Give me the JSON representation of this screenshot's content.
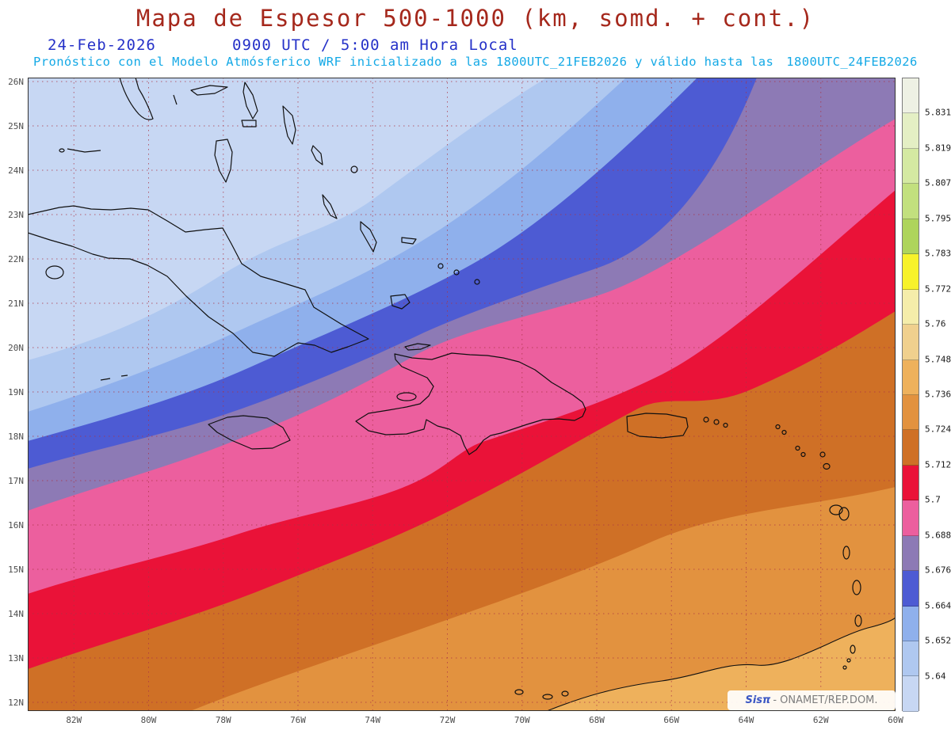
{
  "header": {
    "title": "Mapa de Espesor 500-1000 (km, somd. + cont.)",
    "date": "24-Feb-2026",
    "time": "0900 UTC / 5:00 am Hora Local",
    "forecast_part1": "Pronóstico con el Modelo Atmósferico WRF inicializado a las 1800UTC_21FEB2026 y válido hasta las",
    "forecast_part2": "1800UTC_24FEB2026"
  },
  "map": {
    "lat_labels": [
      "26N",
      "25N",
      "24N",
      "23N",
      "22N",
      "21N",
      "20N",
      "19N",
      "18N",
      "17N",
      "16N",
      "15N",
      "14N",
      "13N",
      "12N"
    ],
    "lon_labels": [
      "82W",
      "80W",
      "78W",
      "76W",
      "74W",
      "72W",
      "70W",
      "68W",
      "66W",
      "64W",
      "62W",
      "60W"
    ],
    "grid_color": "#aa3344",
    "watermark": {
      "brand": "Sisπ",
      "text": "- ONAMET/REP.DOM."
    }
  },
  "colorbar": {
    "labels_top_to_bottom": [
      "5.831",
      "5.819",
      "5.807",
      "5.795",
      "5.783",
      "5.772",
      "5.76",
      "5.748",
      "5.736",
      "5.724",
      "5.712",
      "5.7",
      "5.688",
      "5.676",
      "5.664",
      "5.652",
      "5.64"
    ],
    "colors_top_to_bottom": [
      "#eef1e4",
      "#e4efc4",
      "#d4e9a2",
      "#c2e07e",
      "#aed45c",
      "#f7f22b",
      "#f5edaa",
      "#f0d08e",
      "#eeb15c",
      "#e2923f",
      "#cf7026",
      "#ea1238",
      "#ec5f9e",
      "#8d7ab5",
      "#4d5bd3",
      "#8fb0ec",
      "#afc8f0",
      "#c7d7f3"
    ]
  },
  "chart_data": {
    "type": "filled-contour-map",
    "title": "Espesor 500-1000 (km), sombreado + contornos",
    "region": {
      "lat_range": [
        12,
        26
      ],
      "lon_range": [
        -83.2,
        -60
      ]
    },
    "contour_levels_km": [
      5.64,
      5.652,
      5.664,
      5.676,
      5.688,
      5.7,
      5.712,
      5.724,
      5.736,
      5.748,
      5.76,
      5.772,
      5.783,
      5.795,
      5.807,
      5.819,
      5.831
    ],
    "map_bands_nw_to_se": [
      {
        "range": "< 5.64",
        "color": "#c7d7f3"
      },
      {
        "range": "5.64 - 5.652",
        "color": "#afc8f0"
      },
      {
        "range": "5.652 - 5.664",
        "color": "#8fb0ec"
      },
      {
        "range": "5.664 - 5.676",
        "color": "#4d5bd3"
      },
      {
        "range": "5.676 - 5.688",
        "color": "#8d7ab5"
      },
      {
        "range": "5.688 - 5.7",
        "color": "#ec5f9e"
      },
      {
        "range": "5.7 - 5.712",
        "color": "#ea1238"
      },
      {
        "range": "5.712 - 5.724",
        "color": "#cf7026"
      },
      {
        "range": "5.724 - 5.736",
        "color": "#e2923f"
      },
      {
        "range": "5.736 - 5.748",
        "color": "#eeb15c"
      }
    ]
  }
}
